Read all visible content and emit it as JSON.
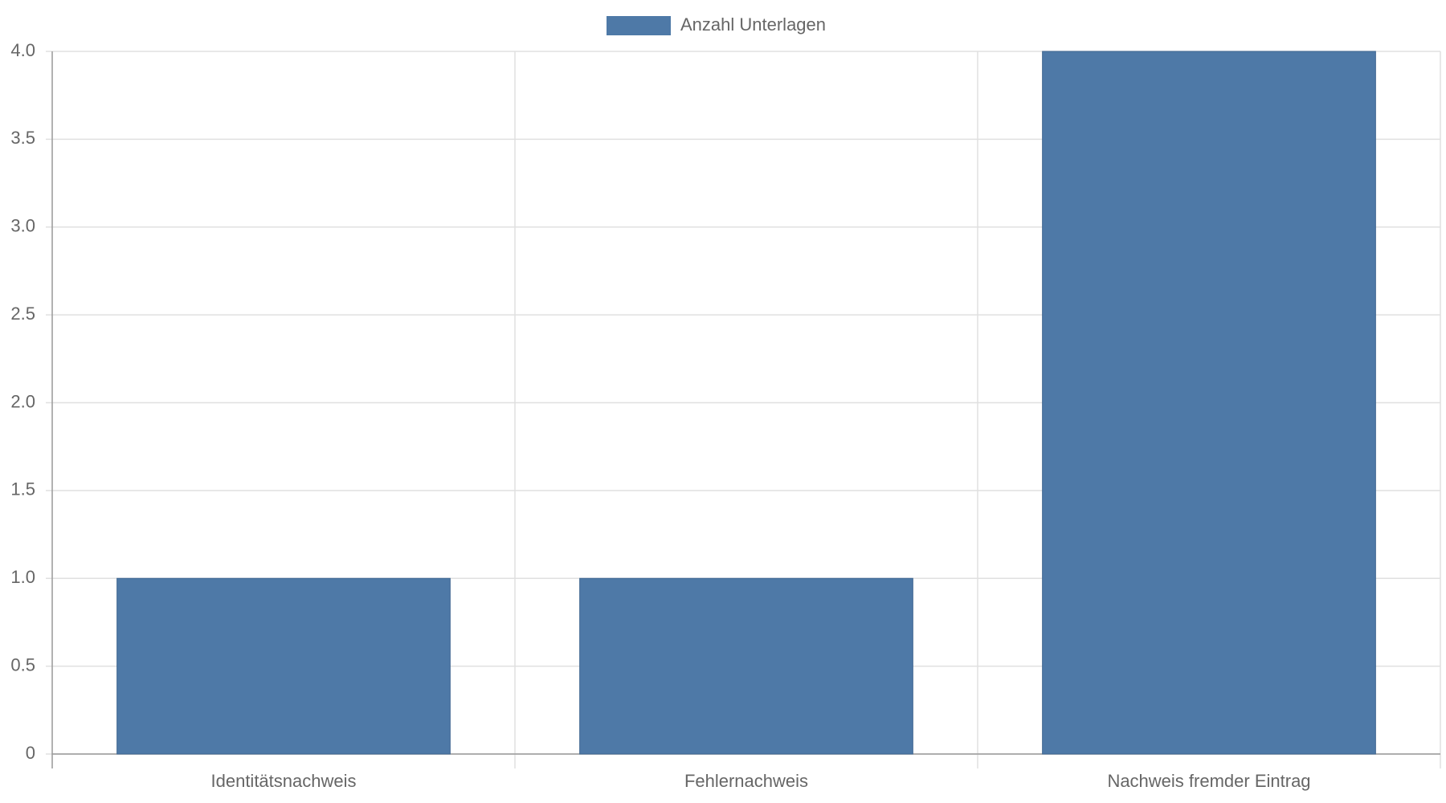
{
  "chart_data": {
    "type": "bar",
    "categories": [
      "Identitätsnachweis",
      "Fehlernachweis",
      "Nachweis fremder Eintrag"
    ],
    "series": [
      {
        "name": "Anzahl Unterlagen",
        "color": "#4e79a7",
        "values": [
          1,
          1,
          4
        ]
      }
    ],
    "ylim": [
      0,
      4
    ],
    "yticks": [
      0,
      0.5,
      {
        "value": 1,
        "label": "1.0"
      },
      1.5,
      {
        "value": 2,
        "label": "2.0"
      },
      2.5,
      {
        "value": 3,
        "label": "3.0"
      },
      3.5,
      {
        "value": 4,
        "label": "4.0"
      }
    ],
    "grid": true,
    "legend": "top"
  }
}
